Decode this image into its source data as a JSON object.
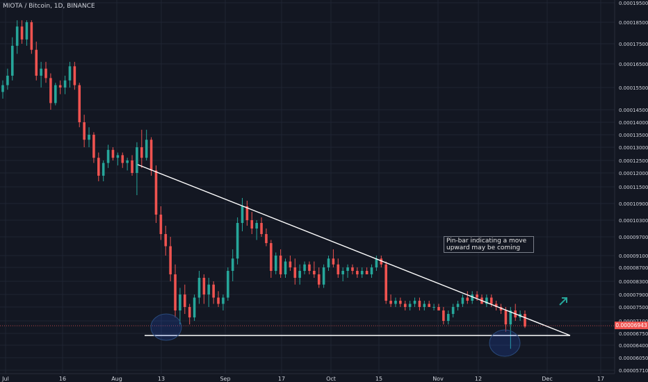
{
  "header": {
    "symbol_title": "MIOTA / Bitcoin, 1D, BINANCE"
  },
  "annotation": {
    "lines": [
      "Pin-bar indicating a move",
      "upward may be coming"
    ]
  },
  "colors": {
    "background": "#131722",
    "grid": "#1f2433",
    "up": "#26a69a",
    "down": "#ef5350",
    "trendline": "#ffffff",
    "circle": "#2a4a7a",
    "arrow": "#26a69a"
  },
  "price_tag": "0.00006943",
  "chart_data": {
    "type": "candlestick",
    "title": "MIOTA / Bitcoin, 1D, BINANCE",
    "x_ticks": [
      "Jul",
      "16",
      "Aug",
      "13",
      "Sep",
      "17",
      "Oct",
      "15",
      "Nov",
      "12",
      "Dec",
      "17"
    ],
    "y_ticks": [
      "0.00019500",
      "0.00018500",
      "0.00017500",
      "0.00016500",
      "0.00015500",
      "0.00014500",
      "0.00014000",
      "0.00013500",
      "0.00013000",
      "0.00012500",
      "0.00012000",
      "0.00011500",
      "0.00010900",
      "0.00010300",
      "0.00009700",
      "0.00009100",
      "0.00008700",
      "0.00008300",
      "0.00007900",
      "0.00007500",
      "0.00007100",
      "0.00006750",
      "0.00006400",
      "0.00006050",
      "0.00005710"
    ],
    "last_price": 6.943e-05,
    "candles": [
      [
        0.000153,
        0.000158,
        0.00015,
        0.000156
      ],
      [
        0.000156,
        0.000163,
        0.000154,
        0.00016
      ],
      [
        0.00016,
        0.000178,
        0.000158,
        0.000174
      ],
      [
        0.000174,
        0.000186,
        0.00017,
        0.000183
      ],
      [
        0.000183,
        0.000186,
        0.000175,
        0.000177
      ],
      [
        0.000177,
        0.000186,
        0.000174,
        0.000185
      ],
      [
        0.000185,
        0.000186,
        0.00017,
        0.000172
      ],
      [
        0.000172,
        0.000176,
        0.000158,
        0.00016
      ],
      [
        0.00016,
        0.000166,
        0.000155,
        0.000163
      ],
      [
        0.000163,
        0.000166,
        0.000157,
        0.000159
      ],
      [
        0.000159,
        0.000161,
        0.000145,
        0.000148
      ],
      [
        0.000148,
        0.000157,
        0.000147,
        0.000156
      ],
      [
        0.000156,
        0.000158,
        0.000152,
        0.000155
      ],
      [
        0.000155,
        0.00016,
        0.000152,
        0.000158
      ],
      [
        0.000158,
        0.000166,
        0.000155,
        0.000164
      ],
      [
        0.000164,
        0.000166,
        0.000154,
        0.000156
      ],
      [
        0.000156,
        0.000157,
        0.000138,
        0.00014
      ],
      [
        0.00014,
        0.000143,
        0.00013,
        0.000133
      ],
      [
        0.000133,
        0.000138,
        0.00013,
        0.000135
      ],
      [
        0.000135,
        0.000136,
        0.000124,
        0.000126
      ],
      [
        0.000126,
        0.000128,
        0.000117,
        0.000119
      ],
      [
        0.000119,
        0.000125,
        0.000117,
        0.000124
      ],
      [
        0.000124,
        0.000131,
        0.000122,
        0.000129
      ],
      [
        0.000129,
        0.00013,
        0.000125,
        0.000126
      ],
      [
        0.000126,
        0.000128,
        0.000123,
        0.000127
      ],
      [
        0.000127,
        0.000128,
        0.000122,
        0.000124
      ],
      [
        0.000124,
        0.000126,
        0.000121,
        0.000125
      ],
      [
        0.000125,
        0.000127,
        0.000119,
        0.00012
      ],
      [
        0.00012,
        0.000132,
        0.000112,
        0.00013
      ],
      [
        0.00013,
        0.000137,
        0.000122,
        0.000126
      ],
      [
        0.000126,
        0.000137,
        0.000125,
        0.000133
      ],
      [
        0.000133,
        0.000134,
        0.000119,
        0.000121
      ],
      [
        0.000121,
        0.000123,
        0.000102,
        0.000105
      ],
      [
        0.000105,
        0.000108,
        9.6e-05,
        9.8e-05
      ],
      [
        9.8e-05,
        0.000101,
        9.1e-05,
        9.4e-05
      ],
      [
        9.4e-05,
        9.7e-05,
        8.3e-05,
        8.5e-05
      ],
      [
        8.5e-05,
        8.8e-05,
        7.2e-05,
        7.4e-05
      ],
      [
        7.4e-05,
        8.1e-05,
        7e-05,
        7.9e-05
      ],
      [
        7.9e-05,
        8.2e-05,
        7.3e-05,
        7.5e-05
      ],
      [
        7.5e-05,
        7.6e-05,
        7e-05,
        7.2e-05
      ],
      [
        7.2e-05,
        7.9e-05,
        7.1e-05,
        7.8e-05
      ],
      [
        7.8e-05,
        8.6e-05,
        7.6e-05,
        8.4e-05
      ],
      [
        8.4e-05,
        8.5e-05,
        7.6e-05,
        7.9e-05
      ],
      [
        7.9e-05,
        8.4e-05,
        7.5e-05,
        8.2e-05
      ],
      [
        8.2e-05,
        8.3e-05,
        7.6e-05,
        7.8e-05
      ],
      [
        7.8e-05,
        8e-05,
        7.5e-05,
        7.6e-05
      ],
      [
        7.6e-05,
        7.9e-05,
        7.4e-05,
        7.8e-05
      ],
      [
        7.8e-05,
        8.7e-05,
        7.7e-05,
        8.6e-05
      ],
      [
        8.6e-05,
        9.3e-05,
        8.3e-05,
        9e-05
      ],
      [
        9e-05,
        0.000104,
        8.8e-05,
        0.000102
      ],
      [
        0.000102,
        0.000111,
        9.9e-05,
        0.000108
      ],
      [
        0.000108,
        0.00011,
        0.000101,
        0.000103
      ],
      [
        0.000103,
        0.000106,
        9.8e-05,
        0.0001
      ],
      [
        0.0001,
        0.000103,
        9.6e-05,
        0.000102
      ],
      [
        0.000102,
        0.000104,
        9.7e-05,
        9.8e-05
      ],
      [
        9.8e-05,
        0.0001,
        9.4e-05,
        9.5e-05
      ],
      [
        9.5e-05,
        9.6e-05,
        8.4e-05,
        8.6e-05
      ],
      [
        8.6e-05,
        9.2e-05,
        8.5e-05,
        9.1e-05
      ],
      [
        9.1e-05,
        9.3e-05,
        8.4e-05,
        8.5e-05
      ],
      [
        8.5e-05,
        9e-05,
        8.4e-05,
        8.9e-05
      ],
      [
        8.9e-05,
        9.1e-05,
        8.6e-05,
        8.7e-05
      ],
      [
        8.7e-05,
        9e-05,
        8.2e-05,
        8.4e-05
      ],
      [
        8.4e-05,
        8.8e-05,
        8.2e-05,
        8.6e-05
      ],
      [
        8.6e-05,
        8.9e-05,
        8.5e-05,
        8.8e-05
      ],
      [
        8.8e-05,
        8.9e-05,
        8.5e-05,
        8.6e-05
      ],
      [
        8.6e-05,
        8.9e-05,
        8.4e-05,
        8.5e-05
      ],
      [
        8.5e-05,
        8.7e-05,
        8.1e-05,
        8.2e-05
      ],
      [
        8.2e-05,
        8.8e-05,
        8.1e-05,
        8.7e-05
      ],
      [
        8.7e-05,
        9.1e-05,
        8.6e-05,
        9e-05
      ],
      [
        9e-05,
        9.3e-05,
        8.7e-05,
        8.8e-05
      ],
      [
        8.8e-05,
        9e-05,
        8.4e-05,
        8.5e-05
      ],
      [
        8.5e-05,
        8.7e-05,
        8.3e-05,
        8.6e-05
      ],
      [
        8.6e-05,
        8.8e-05,
        8.4e-05,
        8.7e-05
      ],
      [
        8.7e-05,
        8.8e-05,
        8.5e-05,
        8.6e-05
      ],
      [
        8.6e-05,
        8.7e-05,
        8.4e-05,
        8.5e-05
      ],
      [
        8.5e-05,
        8.7e-05,
        8.4e-05,
        8.6e-05
      ],
      [
        8.6e-05,
        8.7e-05,
        8.5e-05,
        8.5e-05
      ],
      [
        8.5e-05,
        8.8e-05,
        8.4e-05,
        8.7e-05
      ],
      [
        8.7e-05,
        9.1e-05,
        8.6e-05,
        9e-05
      ],
      [
        9e-05,
        9.1e-05,
        8.7e-05,
        8.8e-05
      ],
      [
        8.8e-05,
        8.9e-05,
        7.6e-05,
        7.7e-05
      ],
      [
        7.7e-05,
        7.9e-05,
        7.5e-05,
        7.6e-05
      ],
      [
        7.6e-05,
        7.8e-05,
        7.5e-05,
        7.7e-05
      ],
      [
        7.7e-05,
        7.8e-05,
        7.5e-05,
        7.6e-05
      ],
      [
        7.6e-05,
        7.7e-05,
        7.4e-05,
        7.5e-05
      ],
      [
        7.5e-05,
        7.7e-05,
        7.4e-05,
        7.6e-05
      ],
      [
        7.6e-05,
        7.8e-05,
        7.5e-05,
        7.7e-05
      ],
      [
        7.7e-05,
        7.8e-05,
        7.4e-05,
        7.5e-05
      ],
      [
        7.5e-05,
        7.7e-05,
        7.4e-05,
        7.6e-05
      ],
      [
        7.6e-05,
        7.7e-05,
        7.5e-05,
        7.5e-05
      ],
      [
        7.5e-05,
        7.6e-05,
        7.4e-05,
        7.5e-05
      ],
      [
        7.5e-05,
        7.6e-05,
        7.4e-05,
        7.4e-05
      ],
      [
        7.4e-05,
        7.5e-05,
        7e-05,
        7.1e-05
      ],
      [
        7.1e-05,
        7.4e-05,
        7e-05,
        7.3e-05
      ],
      [
        7.3e-05,
        7.6e-05,
        7.2e-05,
        7.5e-05
      ],
      [
        7.5e-05,
        7.7e-05,
        7.4e-05,
        7.6e-05
      ],
      [
        7.6e-05,
        7.9e-05,
        7.5e-05,
        7.8e-05
      ],
      [
        7.8e-05,
        8e-05,
        7.6e-05,
        7.7e-05
      ],
      [
        7.7e-05,
        8e-05,
        7.6e-05,
        7.9e-05
      ],
      [
        7.9e-05,
        8e-05,
        7.7e-05,
        7.8e-05
      ],
      [
        7.8e-05,
        7.9e-05,
        7.6e-05,
        7.6e-05
      ],
      [
        7.6e-05,
        7.9e-05,
        7.5e-05,
        7.8e-05
      ],
      [
        7.8e-05,
        7.9e-05,
        7.5e-05,
        7.6e-05
      ],
      [
        7.6e-05,
        7.7e-05,
        7.4e-05,
        7.5e-05
      ],
      [
        7.5e-05,
        7.6e-05,
        7.3e-05,
        7.4e-05
      ],
      [
        7.4e-05,
        7.5e-05,
        6.8e-05,
        7e-05
      ],
      [
        7e-05,
        7.5e-05,
        6.3e-05,
        7.4e-05
      ],
      [
        7.4e-05,
        7.6e-05,
        7.1e-05,
        7.2e-05
      ],
      [
        7.2e-05,
        7.4e-05,
        7.1e-05,
        7.3e-05
      ],
      [
        7.3e-05,
        7.4e-05,
        6.9e-05,
        6.943e-05
      ]
    ]
  }
}
